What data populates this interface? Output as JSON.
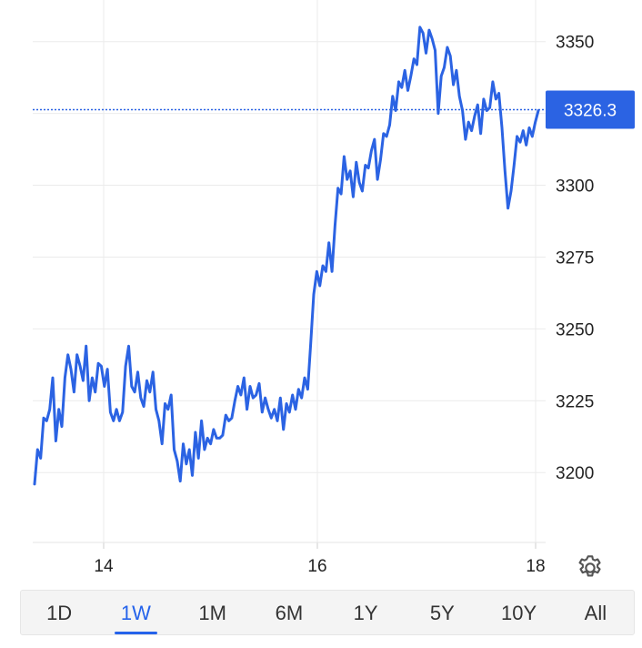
{
  "chart_data": {
    "type": "line",
    "x_ticks": [
      "14",
      "16",
      "18"
    ],
    "y_ticks": [
      3200,
      3225,
      3250,
      3275,
      3300,
      3325,
      3350
    ],
    "ylim": [
      3176,
      3361
    ],
    "current_price": "3326.3",
    "line_color": "#2b63e3",
    "series": [
      {
        "values": [
          3196,
          3208,
          3205,
          3219,
          3218,
          3222,
          3233,
          3211,
          3222,
          3216,
          3233,
          3241,
          3236,
          3228,
          3241,
          3237,
          3232,
          3244,
          3225,
          3233,
          3228,
          3238,
          3237,
          3230,
          3236,
          3221,
          3218,
          3222,
          3218,
          3221,
          3237,
          3244,
          3230,
          3228,
          3235,
          3226,
          3223,
          3232,
          3228,
          3235,
          3222,
          3218,
          3210,
          3224,
          3222,
          3227,
          3208,
          3204,
          3197,
          3210,
          3203,
          3208,
          3199,
          3214,
          3205,
          3218,
          3208,
          3212,
          3210,
          3215,
          3212,
          3212,
          3213,
          3220,
          3218,
          3219,
          3225,
          3230,
          3227,
          3233,
          3222,
          3230,
          3226,
          3227,
          3231,
          3221,
          3226,
          3222,
          3219,
          3222,
          3218,
          3226,
          3215,
          3224,
          3221,
          3227,
          3222,
          3229,
          3226,
          3233,
          3229,
          3245,
          3262,
          3270,
          3265,
          3272,
          3270,
          3280,
          3270,
          3286,
          3299,
          3297,
          3310,
          3302,
          3305,
          3296,
          3308,
          3301,
          3298,
          3307,
          3306,
          3312,
          3316,
          3302,
          3309,
          3318,
          3317,
          3321,
          3331,
          3326,
          3336,
          3334,
          3340,
          3333,
          3338,
          3344,
          3342,
          3355,
          3353,
          3346,
          3354,
          3351,
          3347,
          3325,
          3338,
          3341,
          3348,
          3345,
          3335,
          3340,
          3331,
          3326,
          3316,
          3322,
          3319,
          3324,
          3328,
          3318,
          3330,
          3326,
          3327,
          3336,
          3330,
          3332,
          3320,
          3305,
          3292,
          3298,
          3307,
          3317,
          3315,
          3319,
          3314,
          3320,
          3317,
          3322,
          3326
        ]
      }
    ]
  },
  "range_tabs": [
    {
      "label": "1D",
      "active": false
    },
    {
      "label": "1W",
      "active": true
    },
    {
      "label": "1M",
      "active": false
    },
    {
      "label": "6M",
      "active": false
    },
    {
      "label": "1Y",
      "active": false
    },
    {
      "label": "5Y",
      "active": false
    },
    {
      "label": "10Y",
      "active": false
    },
    {
      "label": "All",
      "active": false
    }
  ],
  "icons": {
    "settings": "gear-icon"
  },
  "colors": {
    "accent": "#2563eb",
    "price_tag": "#2b63e3"
  }
}
